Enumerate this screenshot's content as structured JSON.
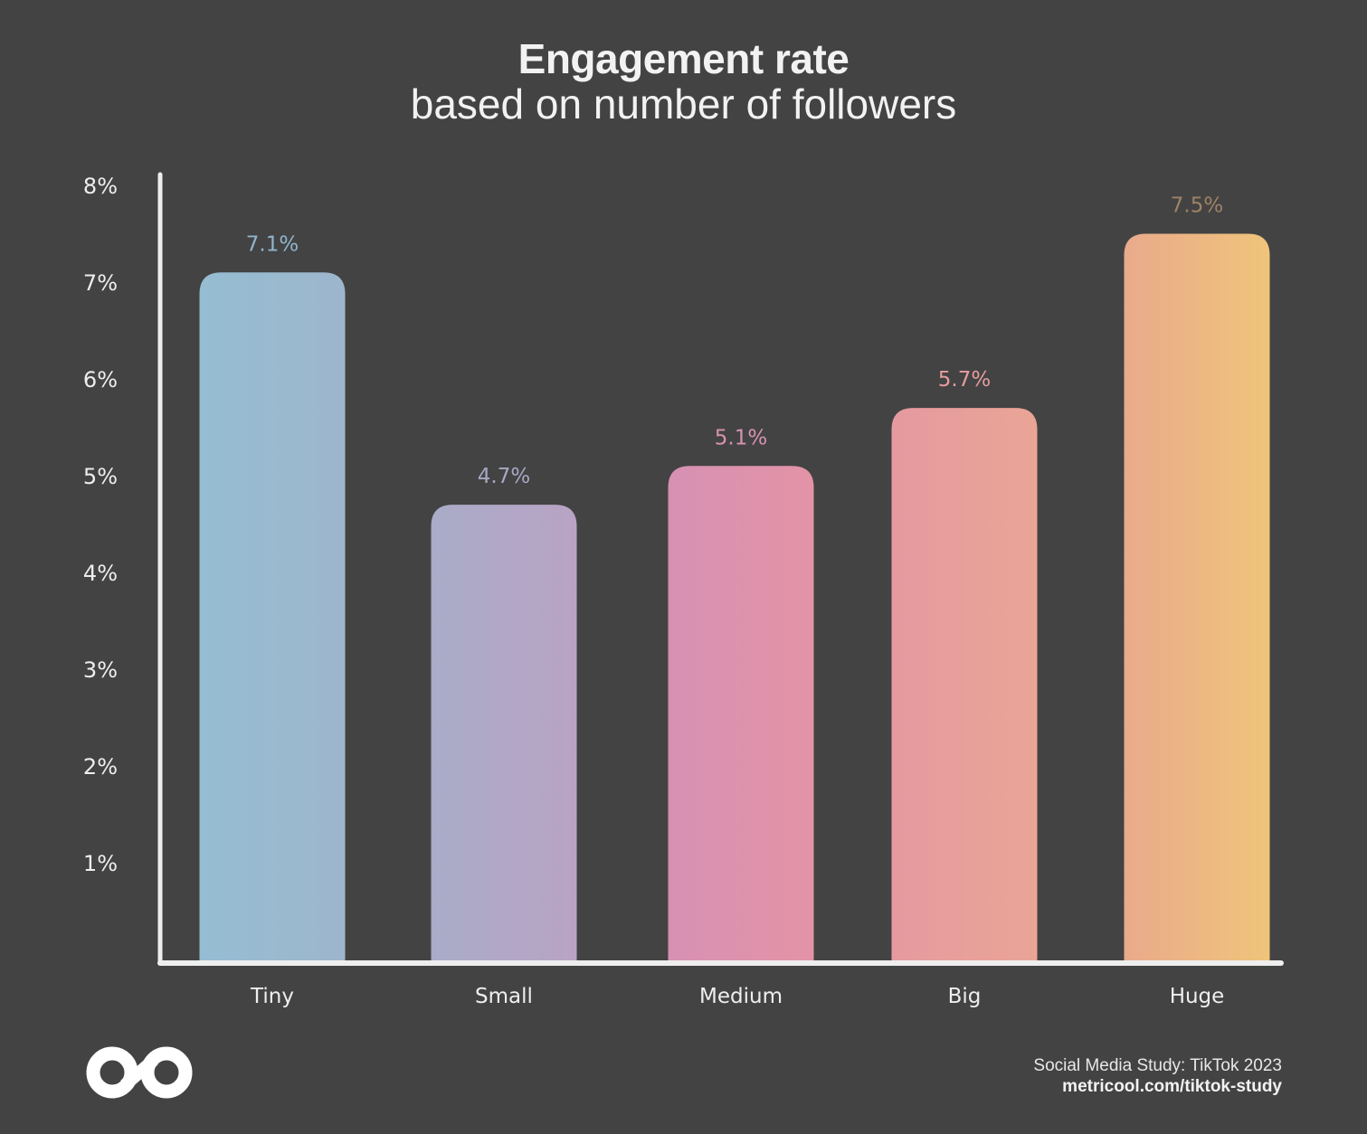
{
  "chart_data": {
    "type": "bar",
    "title": "Engagement rate",
    "subtitle": "based on number of followers",
    "xlabel": "",
    "ylabel": "",
    "categories": [
      "Tiny",
      "Small",
      "Medium",
      "Big",
      "Huge"
    ],
    "values": [
      7.1,
      4.7,
      5.1,
      5.7,
      7.5
    ],
    "value_labels": [
      "7.1%",
      "4.7%",
      "5.1%",
      "5.7%",
      "7.5%"
    ],
    "ylim": [
      0,
      8
    ],
    "yticks": [
      1,
      2,
      3,
      4,
      5,
      6,
      7,
      8
    ],
    "ytick_labels": [
      "1%",
      "2%",
      "3%",
      "4%",
      "5%",
      "6%",
      "7%",
      "8%"
    ],
    "grid": false,
    "legend": "none",
    "colors": {
      "bar_gradients": [
        [
          "#95bdd2",
          "#9db6cc"
        ],
        [
          "#a9acc8",
          "#b9a3c4"
        ],
        [
          "#d791b3",
          "#e393a6"
        ],
        [
          "#e59a9f",
          "#eaa596"
        ],
        [
          "#eaaa8c",
          "#efc47a"
        ]
      ],
      "value_label_colors": [
        "#8fb4cc",
        "#a6a8c4",
        "#d792b0",
        "#e59c9e",
        "#9e8265"
      ],
      "axis": "#eeeeee",
      "background": "#434343"
    }
  },
  "header": {
    "title": "Engagement rate",
    "subtitle": "based on number of followers"
  },
  "footer": {
    "source": "Social Media Study: TikTok 2023",
    "url": "metricool.com/tiktok-study",
    "logo": "metricool-infinity-logo"
  }
}
